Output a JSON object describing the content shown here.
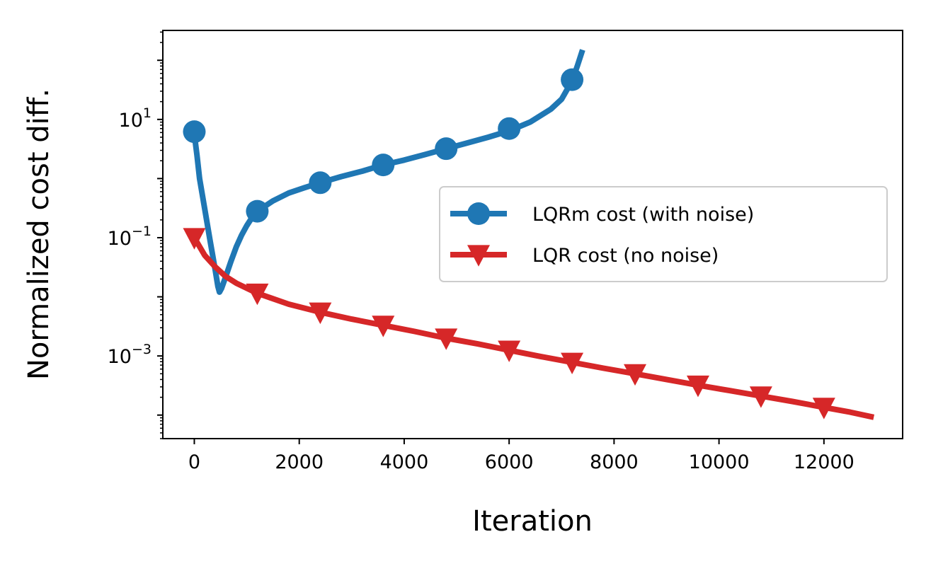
{
  "chart_data": {
    "type": "line",
    "title": "",
    "xlabel": "Iteration",
    "ylabel": "Normalized cost diff.",
    "xlim": [
      -600,
      13500
    ],
    "ylim": [
      4e-05,
      320
    ],
    "yscale": "log",
    "xticks": [
      0,
      2000,
      4000,
      6000,
      8000,
      10000,
      12000
    ],
    "yticks": [
      {
        "value": 10,
        "base": "10",
        "exp": "1"
      },
      {
        "value": 0.1,
        "base": "10",
        "exp": "−1"
      },
      {
        "value": 0.001,
        "base": "10",
        "exp": "−3"
      }
    ],
    "grid": false,
    "legend_position": "center-right",
    "series": [
      {
        "name": "LQRm cost (with noise)",
        "color": "#1f77b4",
        "marker": "circle",
        "curve": [
          [
            0,
            5.6
          ],
          [
            50,
            2.5
          ],
          [
            100,
            1.0
          ],
          [
            200,
            0.3
          ],
          [
            300,
            0.09
          ],
          [
            400,
            0.028
          ],
          [
            450,
            0.015
          ],
          [
            480,
            0.012
          ],
          [
            520,
            0.014
          ],
          [
            600,
            0.022
          ],
          [
            700,
            0.04
          ],
          [
            800,
            0.07
          ],
          [
            900,
            0.11
          ],
          [
            1000,
            0.16
          ],
          [
            1100,
            0.22
          ],
          [
            1200,
            0.28
          ],
          [
            1500,
            0.42
          ],
          [
            1800,
            0.57
          ],
          [
            2100,
            0.7
          ],
          [
            2400,
            0.85
          ],
          [
            2800,
            1.08
          ],
          [
            3200,
            1.33
          ],
          [
            3600,
            1.7
          ],
          [
            4000,
            2.05
          ],
          [
            4400,
            2.55
          ],
          [
            4800,
            3.2
          ],
          [
            5200,
            4.0
          ],
          [
            5600,
            5.0
          ],
          [
            6000,
            6.4
          ],
          [
            6400,
            9.0
          ],
          [
            6800,
            15
          ],
          [
            7000,
            22
          ],
          [
            7200,
            45
          ],
          [
            7300,
            80
          ],
          [
            7400,
            150
          ]
        ],
        "markers": [
          [
            0,
            6.2
          ],
          [
            1200,
            0.28
          ],
          [
            2400,
            0.85
          ],
          [
            3600,
            1.7
          ],
          [
            4800,
            3.2
          ],
          [
            6000,
            7.0
          ],
          [
            7200,
            47
          ]
        ]
      },
      {
        "name": "LQR cost (no noise)",
        "color": "#d62728",
        "marker": "triangle-down",
        "curve": [
          [
            0,
            0.1
          ],
          [
            200,
            0.05
          ],
          [
            400,
            0.032
          ],
          [
            600,
            0.022
          ],
          [
            800,
            0.017
          ],
          [
            1000,
            0.014
          ],
          [
            1200,
            0.0115
          ],
          [
            1800,
            0.0075
          ],
          [
            2400,
            0.0055
          ],
          [
            3000,
            0.0042
          ],
          [
            3600,
            0.0033
          ],
          [
            4200,
            0.0026
          ],
          [
            4800,
            0.002
          ],
          [
            5400,
            0.0016
          ],
          [
            6000,
            0.00125
          ],
          [
            6600,
            0.00098
          ],
          [
            7200,
            0.00078
          ],
          [
            7800,
            0.00062
          ],
          [
            8400,
            0.0005
          ],
          [
            9000,
            0.0004
          ],
          [
            9600,
            0.00032
          ],
          [
            10200,
            0.00026
          ],
          [
            10800,
            0.00021
          ],
          [
            11400,
            0.00017
          ],
          [
            12000,
            0.000135
          ],
          [
            12500,
            0.000112
          ],
          [
            12950,
            9.2e-05
          ]
        ],
        "markers": [
          [
            0,
            0.1
          ],
          [
            1200,
            0.0115
          ],
          [
            2400,
            0.0055
          ],
          [
            3600,
            0.0033
          ],
          [
            4800,
            0.002
          ],
          [
            6000,
            0.00125
          ],
          [
            7200,
            0.00078
          ],
          [
            8400,
            0.0005
          ],
          [
            9600,
            0.00032
          ],
          [
            10800,
            0.00021
          ],
          [
            12000,
            0.000135
          ]
        ]
      }
    ]
  }
}
